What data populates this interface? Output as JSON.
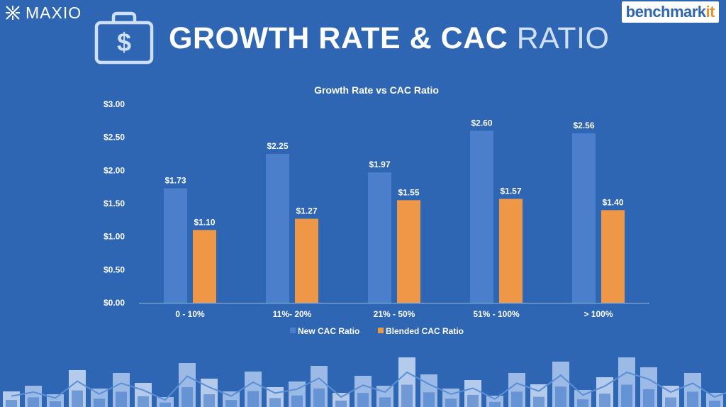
{
  "brand": {
    "left_logo": "MAXIO",
    "right_logo_main": "benchmark",
    "right_logo_accent": "it"
  },
  "slide": {
    "title_main": "GROWTH RATE & CAC",
    "title_accent": "RATIO"
  },
  "colors": {
    "background": "#2f66b3",
    "new_cac": "#4b7fcb",
    "blended_cac": "#ed9747"
  },
  "chart_data": {
    "type": "bar",
    "title": "Growth Rate vs CAC Ratio",
    "xlabel": "",
    "ylabel": "",
    "ylim": [
      0,
      3.0
    ],
    "yticks": [
      "$0.00",
      "$0.50",
      "$1.00",
      "$1.50",
      "$2.00",
      "$2.50",
      "$3.00"
    ],
    "ytick_values": [
      0,
      0.5,
      1.0,
      1.5,
      2.0,
      2.5,
      3.0
    ],
    "categories": [
      "0 - 10%",
      "11%- 20%",
      "21% - 50%",
      "51% - 100%",
      "> 100%"
    ],
    "series": [
      {
        "name": "New CAC Ratio",
        "values": [
          1.73,
          2.25,
          1.97,
          2.6,
          2.56
        ],
        "labels": [
          "$1.73",
          "$2.25",
          "$1.97",
          "$2.60",
          "$2.56"
        ]
      },
      {
        "name": "Blended CAC Ratio",
        "values": [
          1.1,
          1.27,
          1.55,
          1.57,
          1.4
        ],
        "labels": [
          "$1.10",
          "$1.27",
          "$1.55",
          "$1.57",
          "$1.40"
        ]
      }
    ],
    "legend_position": "bottom",
    "grid": false
  }
}
